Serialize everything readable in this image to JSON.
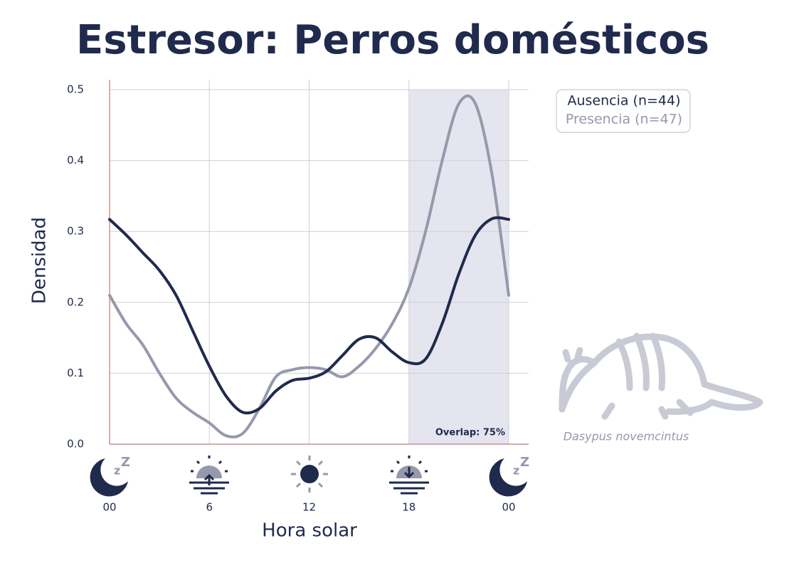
{
  "chart_data": {
    "type": "line",
    "title": "Estresor: Perros domésticos",
    "x_label": "Hora solar",
    "y_label": "Densidad",
    "x": [
      0,
      1,
      2,
      3,
      4,
      5,
      6,
      7,
      8,
      9,
      10,
      11,
      12,
      13,
      14,
      15,
      16,
      17,
      18,
      19,
      20,
      21,
      22,
      23,
      24
    ],
    "series": [
      {
        "name": "Ausencia (n=44)",
        "color": "#1f2a4d",
        "values": [
          0.317,
          0.295,
          0.27,
          0.245,
          0.21,
          0.16,
          0.11,
          0.068,
          0.045,
          0.05,
          0.075,
          0.09,
          0.093,
          0.102,
          0.125,
          0.148,
          0.15,
          0.13,
          0.115,
          0.12,
          0.17,
          0.24,
          0.295,
          0.318,
          0.317
        ]
      },
      {
        "name": "Presencia (n=47)",
        "color": "#9599ab",
        "values": [
          0.21,
          0.17,
          0.14,
          0.1,
          0.065,
          0.045,
          0.03,
          0.012,
          0.015,
          0.05,
          0.095,
          0.105,
          0.108,
          0.105,
          0.095,
          0.11,
          0.135,
          0.17,
          0.22,
          0.3,
          0.4,
          0.48,
          0.48,
          0.38,
          0.21
        ]
      }
    ],
    "xlim": [
      0,
      24
    ],
    "ylim": [
      0,
      0.5
    ],
    "xticks": [
      {
        "value": 0,
        "label": "00"
      },
      6,
      12,
      18,
      {
        "value": 24,
        "label": "00"
      }
    ],
    "yticks": [
      {
        "value": 0,
        "label": "0.0"
      },
      0.1,
      0.2,
      0.3,
      0.4,
      0.5
    ],
    "grid": true,
    "shaded_range": [
      18,
      24
    ],
    "annotation": "Overlap: 75%",
    "legend": "upper right",
    "species": "Dasypus novemcintus"
  }
}
